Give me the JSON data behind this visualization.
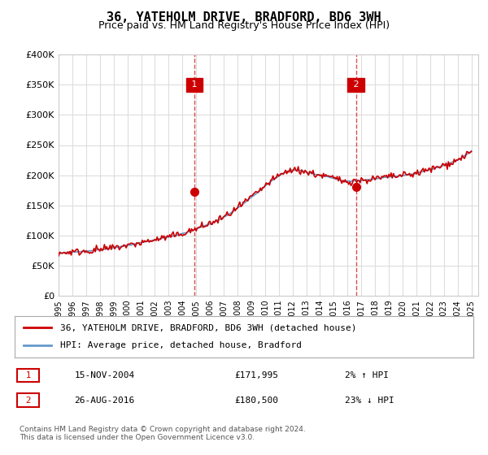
{
  "title": "36, YATEHOLM DRIVE, BRADFORD, BD6 3WH",
  "subtitle": "Price paid vs. HM Land Registry's House Price Index (HPI)",
  "title_fontsize": 11,
  "subtitle_fontsize": 9,
  "ylabel": "",
  "xlabel": "",
  "ylim": [
    0,
    400000
  ],
  "yticks": [
    0,
    50000,
    100000,
    150000,
    200000,
    250000,
    300000,
    350000,
    400000
  ],
  "ytick_labels": [
    "£0",
    "£50K",
    "£100K",
    "£150K",
    "£200K",
    "£250K",
    "£300K",
    "£350K",
    "£400K"
  ],
  "line1_color": "#cc0000",
  "line2_color": "#6699cc",
  "fill_color": "#cce0f0",
  "marker1_date_idx": 9.9,
  "marker2_date_idx": 21.7,
  "marker1_label": "1",
  "marker2_label": "2",
  "marker1_value": 171995,
  "marker2_value": 180500,
  "legend_line1": "36, YATEHOLM DRIVE, BRADFORD, BD6 3WH (detached house)",
  "legend_line2": "HPI: Average price, detached house, Bradford",
  "table_row1": [
    "1",
    "15-NOV-2004",
    "£171,995",
    "2% ↑ HPI"
  ],
  "table_row2": [
    "2",
    "26-AUG-2016",
    "£180,500",
    "23% ↓ HPI"
  ],
  "footer": "Contains HM Land Registry data © Crown copyright and database right 2024.\nThis data is licensed under the Open Government Licence v3.0.",
  "bg_color": "#ffffff",
  "plot_bg_color": "#ffffff",
  "grid_color": "#dddddd"
}
